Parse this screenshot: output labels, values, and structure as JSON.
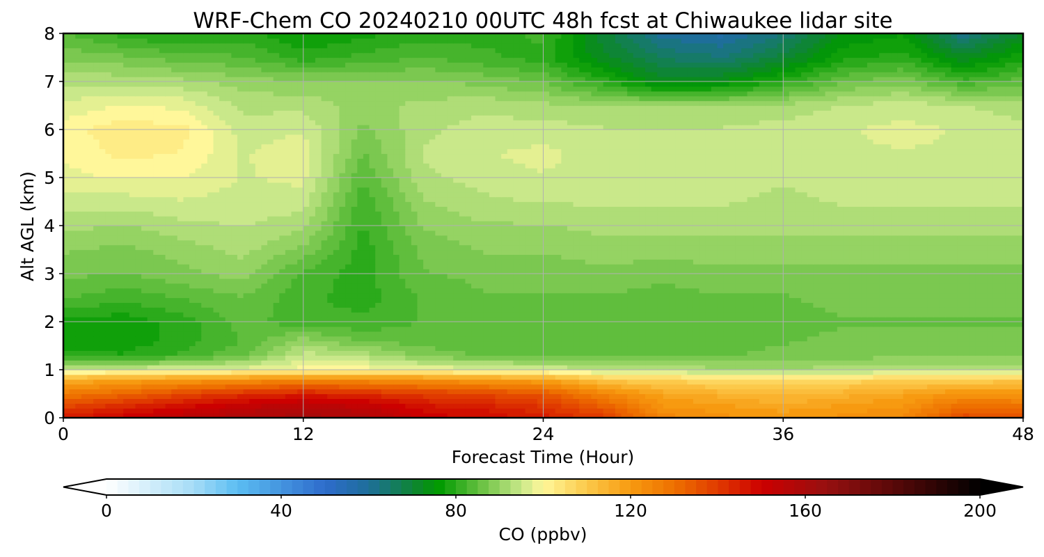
{
  "chart_data": {
    "type": "heatmap",
    "title": "WRF-Chem CO  20240210 00UTC 48h fcst at Chiwaukee lidar site",
    "xlabel": "Forecast Time (Hour)",
    "ylabel": "Alt AGL (km)",
    "xlim": [
      0,
      48
    ],
    "ylim": [
      0,
      8
    ],
    "xticks": [
      0,
      12,
      24,
      36,
      48
    ],
    "yticks": [
      0,
      1,
      2,
      3,
      4,
      5,
      6,
      7,
      8
    ],
    "grid": true,
    "colorbar": {
      "label": "CO  (ppbv)",
      "min": 0,
      "max": 200,
      "ticks": [
        0,
        40,
        80,
        120,
        160,
        200
      ],
      "extend": "both",
      "stops": [
        {
          "value": 0,
          "color": "#ffffff"
        },
        {
          "value": 20,
          "color": "#a5dcf6"
        },
        {
          "value": 30,
          "color": "#5bbdf2"
        },
        {
          "value": 50,
          "color": "#2e6ccc"
        },
        {
          "value": 60,
          "color": "#1e6e9a"
        },
        {
          "value": 72,
          "color": "#0b8a22"
        },
        {
          "value": 76,
          "color": "#009a00"
        },
        {
          "value": 86,
          "color": "#6bc244"
        },
        {
          "value": 95,
          "color": "#c9e88a"
        },
        {
          "value": 100,
          "color": "#fff79a"
        },
        {
          "value": 110,
          "color": "#fcc94a"
        },
        {
          "value": 120,
          "color": "#f79a10"
        },
        {
          "value": 130,
          "color": "#ee7000"
        },
        {
          "value": 140,
          "color": "#e03a00"
        },
        {
          "value": 150,
          "color": "#cc0000"
        },
        {
          "value": 165,
          "color": "#961010"
        },
        {
          "value": 180,
          "color": "#5a0808"
        },
        {
          "value": 200,
          "color": "#000000"
        }
      ]
    },
    "x": [
      0,
      3,
      6,
      9,
      12,
      15,
      18,
      21,
      24,
      27,
      30,
      33,
      36,
      39,
      42,
      45,
      48
    ],
    "y": [
      0,
      0.2,
      0.5,
      0.8,
      1.0,
      1.3,
      1.6,
      2.0,
      2.5,
      3.0,
      3.5,
      4.0,
      4.5,
      5.0,
      5.5,
      6.0,
      6.5,
      7.0,
      7.5,
      8.0
    ],
    "z": [
      [
        145,
        150,
        155,
        158,
        160,
        158,
        150,
        148,
        145,
        140,
        125,
        122,
        120,
        122,
        124,
        138,
        135
      ],
      [
        140,
        145,
        150,
        155,
        158,
        155,
        148,
        146,
        142,
        135,
        122,
        120,
        118,
        120,
        122,
        132,
        130
      ],
      [
        128,
        132,
        138,
        142,
        145,
        143,
        140,
        138,
        135,
        125,
        118,
        115,
        113,
        115,
        118,
        122,
        122
      ],
      [
        115,
        118,
        120,
        122,
        125,
        123,
        122,
        120,
        118,
        110,
        108,
        106,
        105,
        107,
        108,
        108,
        110
      ],
      [
        96,
        96,
        97,
        98,
        100,
        100,
        99,
        97,
        96,
        94,
        93,
        92,
        92,
        92,
        93,
        93,
        94
      ],
      [
        80,
        79,
        82,
        86,
        95,
        93,
        88,
        86,
        86,
        86,
        86,
        86,
        87,
        88,
        88,
        88,
        88
      ],
      [
        77,
        77,
        80,
        84,
        90,
        86,
        85,
        84,
        84,
        85,
        85,
        85,
        86,
        87,
        87,
        87,
        87
      ],
      [
        78,
        77,
        80,
        85,
        82,
        82,
        84,
        84,
        84,
        84,
        84,
        84,
        85,
        86,
        86,
        86,
        86
      ],
      [
        84,
        82,
        84,
        86,
        82,
        80,
        84,
        86,
        86,
        86,
        85,
        86,
        86,
        87,
        87,
        87,
        87
      ],
      [
        87,
        86,
        88,
        90,
        83,
        80,
        86,
        87,
        87,
        88,
        87,
        88,
        88,
        88,
        88,
        88,
        88
      ],
      [
        89,
        88,
        90,
        92,
        88,
        80,
        87,
        89,
        89,
        90,
        90,
        90,
        90,
        90,
        90,
        90,
        90
      ],
      [
        92,
        91,
        93,
        94,
        92,
        81,
        89,
        91,
        91,
        92,
        92,
        92,
        92,
        92,
        92,
        92,
        92
      ],
      [
        95,
        95,
        96,
        95,
        95,
        82,
        91,
        93,
        94,
        94,
        94,
        94,
        93,
        94,
        94,
        94,
        94
      ],
      [
        98,
        99,
        99,
        96,
        97,
        84,
        93,
        95,
        96,
        95,
        96,
        95,
        94,
        95,
        95,
        95,
        95
      ],
      [
        99,
        102,
        101,
        96,
        98,
        86,
        94,
        96,
        97,
        95,
        95,
        95,
        95,
        96,
        96,
        96,
        96
      ],
      [
        100,
        103,
        102,
        95,
        96,
        88,
        93,
        95,
        95,
        94,
        94,
        94,
        95,
        96,
        97,
        96,
        95
      ],
      [
        97,
        99,
        98,
        93,
        93,
        90,
        92,
        93,
        92,
        91,
        91,
        91,
        92,
        94,
        95,
        94,
        92
      ],
      [
        93,
        93,
        92,
        90,
        89,
        89,
        89,
        88,
        86,
        80,
        72,
        74,
        80,
        86,
        88,
        82,
        85
      ],
      [
        88,
        87,
        85,
        84,
        80,
        82,
        84,
        82,
        80,
        72,
        66,
        64,
        70,
        78,
        80,
        72,
        78
      ],
      [
        84,
        80,
        78,
        80,
        76,
        78,
        80,
        80,
        82,
        70,
        60,
        58,
        64,
        74,
        76,
        62,
        72
      ]
    ]
  }
}
